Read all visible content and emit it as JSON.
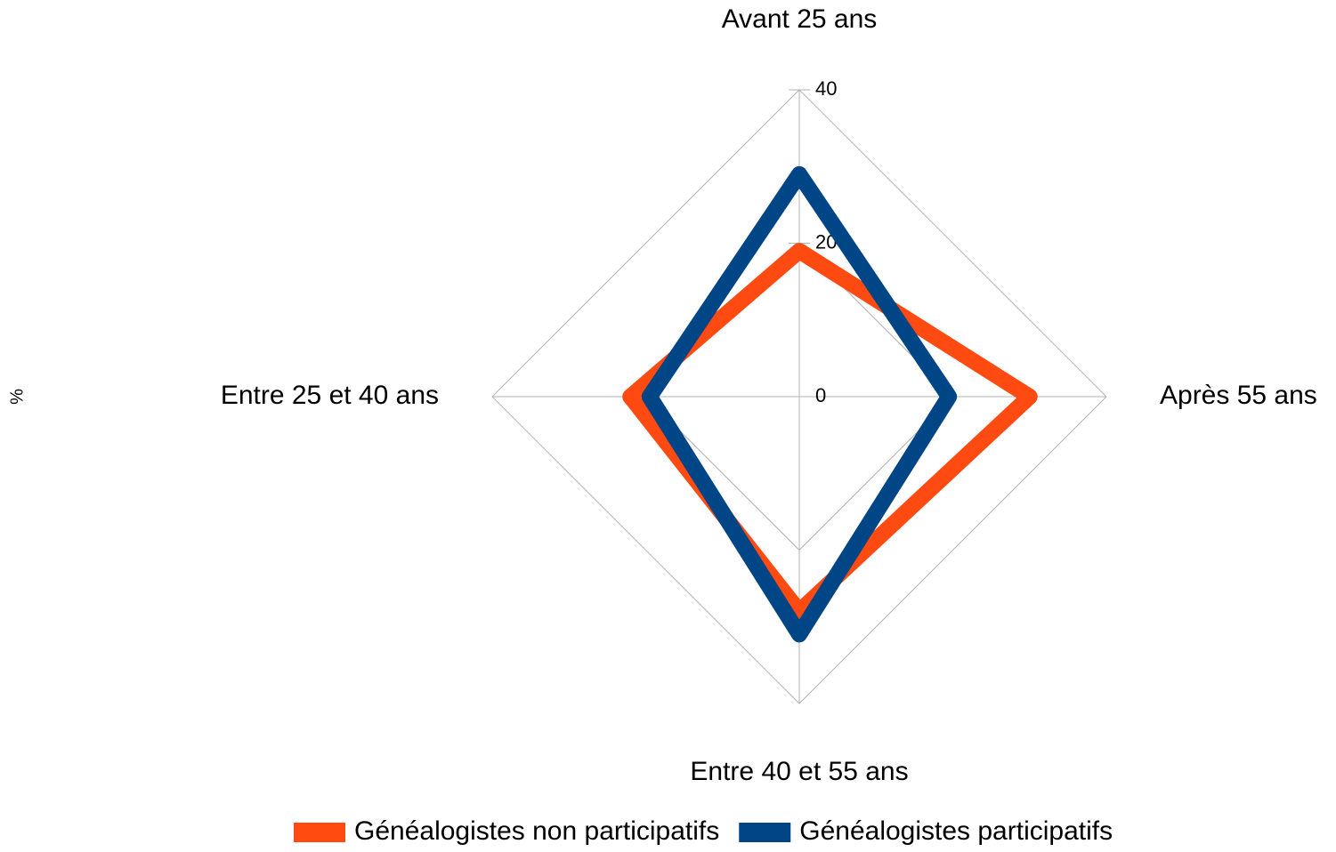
{
  "chart_data": {
    "type": "radar",
    "y_label": "%",
    "categories": [
      "Avant 25 ans",
      "Après 55 ans",
      "Entre 40 et 55 ans",
      "Entre 25 et 40 ans"
    ],
    "series": [
      {
        "name": "Généalogistes non participatifs",
        "color": "#ff4a12",
        "values": [
          19,
          30,
          28,
          22
        ]
      },
      {
        "name": "Généalogistes participatifs",
        "color": "#004586",
        "values": [
          29,
          19.5,
          31,
          19.5
        ]
      }
    ],
    "ylim": [
      0,
      40
    ],
    "yticks": [
      0,
      20,
      40
    ],
    "grid": true,
    "legend": "bottom"
  }
}
